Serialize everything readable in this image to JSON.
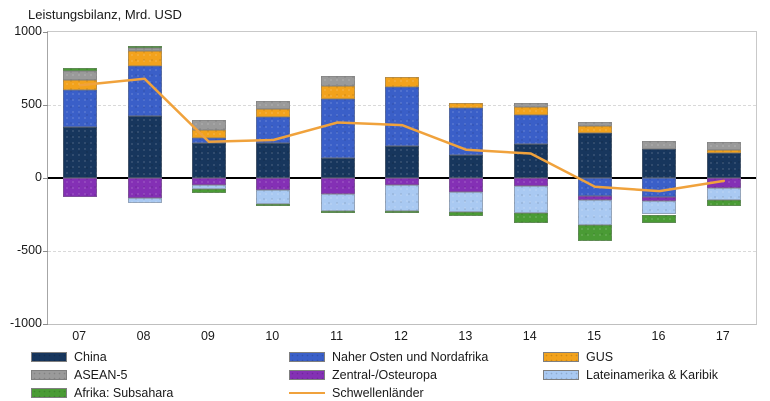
{
  "title": "Leistungsbilanz, Mrd. USD",
  "chart_data": {
    "type": "bar",
    "stacked": true,
    "title": "Leistungsbilanz, Mrd. USD",
    "unit": "Mrd. USD",
    "categories": [
      "07",
      "08",
      "09",
      "10",
      "11",
      "12",
      "13",
      "14",
      "15",
      "16",
      "17"
    ],
    "series": [
      {
        "name": "China",
        "color": "#17365d",
        "values": [
          350,
          423,
          237,
          240,
          140,
          218,
          155,
          236,
          310,
          197,
          168
        ]
      },
      {
        "name": "Naher Osten und Nordafrika",
        "color": "#3a5fc8",
        "values": [
          250,
          347,
          34,
          175,
          400,
          407,
          327,
          194,
          -123,
          -130,
          0
        ]
      },
      {
        "name": "GUS",
        "color": "#f2a21c",
        "values": [
          73,
          98,
          60,
          55,
          91,
          68,
          30,
          56,
          45,
          0,
          23
        ]
      },
      {
        "name": "ASEAN-5",
        "color": "#9a9a9a",
        "values": [
          63,
          23,
          65,
          58,
          68,
          0,
          0,
          28,
          30,
          57,
          57
        ]
      },
      {
        "name": "Zentral-/Osteuropa",
        "color": "#8430b5",
        "values": [
          -127,
          -138,
          -50,
          -82,
          -110,
          -48,
          -93,
          -55,
          -27,
          -27,
          -70
        ]
      },
      {
        "name": "Lateinamerika & Karibik",
        "color": "#a9c9f2",
        "values": [
          0,
          -34,
          -28,
          -95,
          -115,
          -175,
          -137,
          -186,
          -170,
          -93,
          -80
        ]
      },
      {
        "name": "Afrika: Subsahara",
        "color": "#4a9b35",
        "values": [
          18,
          11,
          -23,
          -18,
          -15,
          -20,
          -29,
          -65,
          -110,
          -57,
          -45
        ]
      }
    ],
    "line_series": {
      "name": "Schwellenländer",
      "color": "#f0a23c",
      "values": [
        635,
        680,
        248,
        260,
        380,
        362,
        193,
        168,
        -60,
        -90,
        -20
      ]
    },
    "y_ticks": [
      1000,
      500,
      0,
      -500,
      -1000
    ],
    "ylim": [
      -1000,
      1000
    ],
    "grid": "dashed horizontal at ±500, solid black zero line",
    "legend_position": "bottom"
  },
  "legend": {
    "columns": [
      {
        "entries": [
          {
            "label": "China",
            "color": "#17365d",
            "swatch": "box"
          },
          {
            "label": "ASEAN-5",
            "color": "#9a9a9a",
            "swatch": "box"
          },
          {
            "label": "Afrika: Subsahara",
            "color": "#4a9b35",
            "swatch": "box"
          }
        ]
      },
      {
        "entries": [
          {
            "label": "Naher Osten und Nordafrika",
            "color": "#3a5fc8",
            "swatch": "box"
          },
          {
            "label": "Zentral-/Osteuropa",
            "color": "#8430b5",
            "swatch": "box"
          },
          {
            "label": "Schwellenländer",
            "color": "#f0a23c",
            "swatch": "line"
          }
        ]
      },
      {
        "entries": [
          {
            "label": "GUS",
            "color": "#f2a21c",
            "swatch": "box"
          },
          {
            "label": "Lateinamerika & Karibik",
            "color": "#a9c9f2",
            "swatch": "box"
          }
        ]
      }
    ]
  }
}
